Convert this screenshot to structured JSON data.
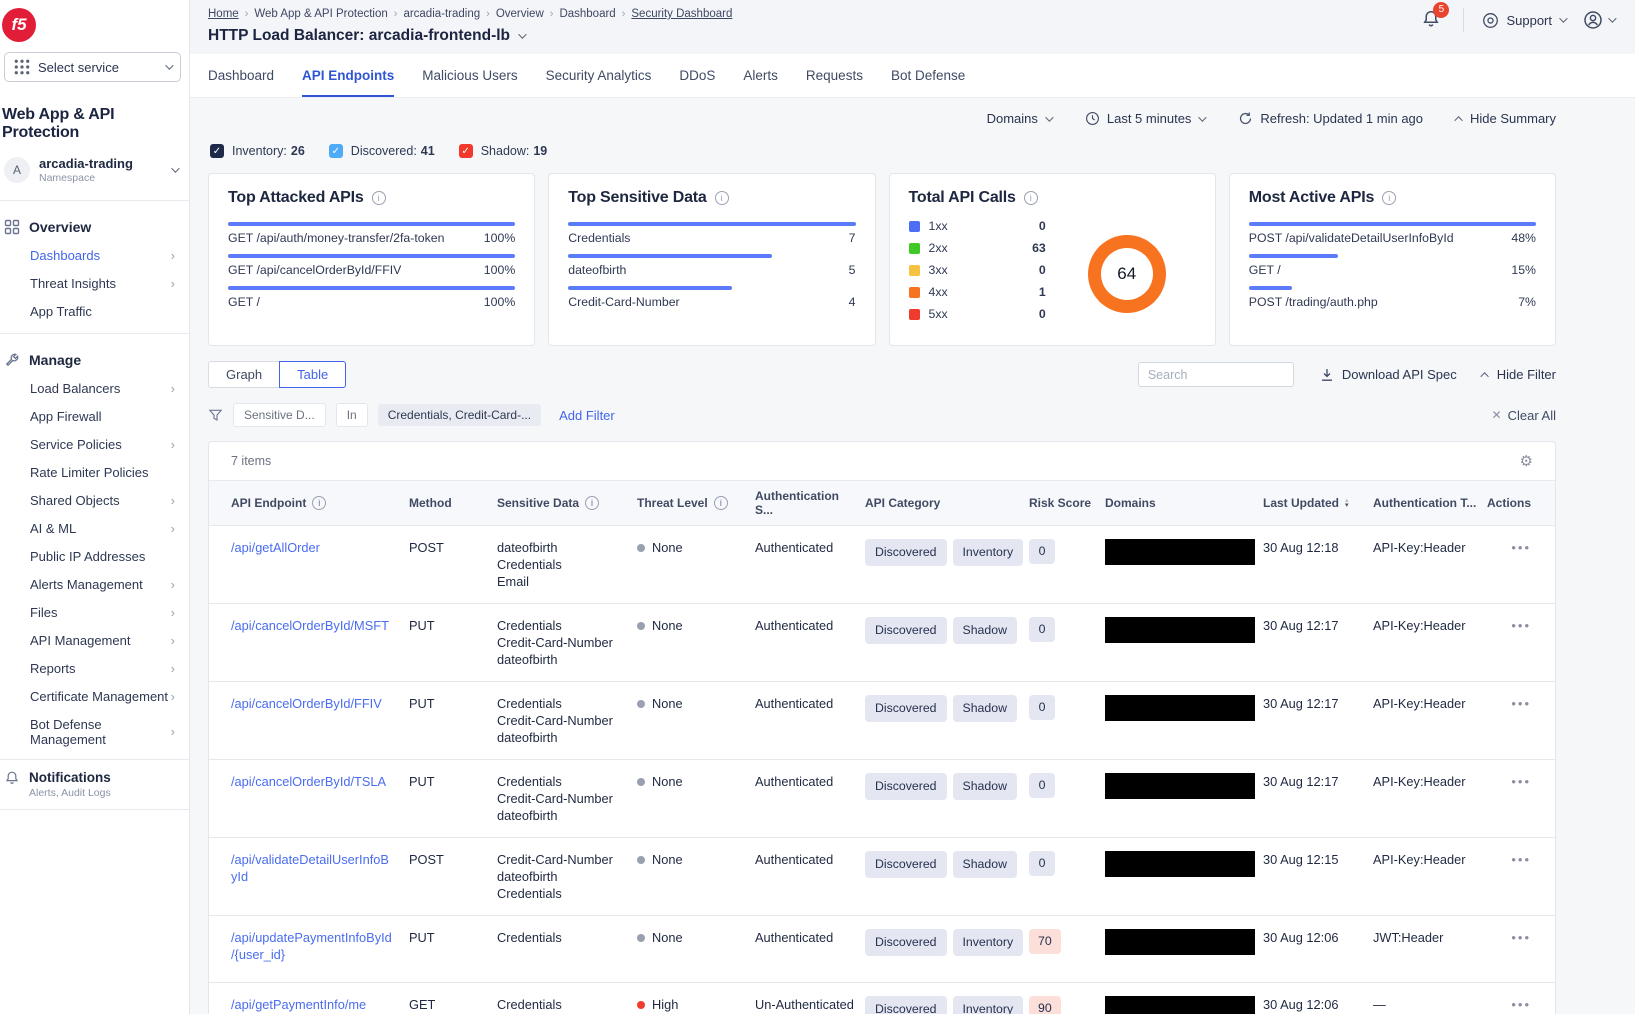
{
  "sidebar": {
    "logo_text": "f5",
    "select_service": {
      "label": "Select service"
    },
    "product_title": "Web App & API Protection",
    "namespace": {
      "avatar": "A",
      "name": "arcadia-trading",
      "sublabel": "Namespace"
    },
    "groups": [
      {
        "title": "Overview",
        "items": [
          {
            "label": "Dashboards",
            "chevron": "›"
          },
          {
            "label": "Threat Insights",
            "chevron": "›"
          },
          {
            "label": "App Traffic",
            "chevron": ""
          }
        ]
      },
      {
        "title": "Manage",
        "items": [
          {
            "label": "Load Balancers",
            "chevron": "›"
          },
          {
            "label": "App Firewall",
            "chevron": ""
          },
          {
            "label": "Service Policies",
            "chevron": "›"
          },
          {
            "label": "Rate Limiter Policies",
            "chevron": ""
          },
          {
            "label": "Shared Objects",
            "chevron": "›"
          },
          {
            "label": "AI & ML",
            "chevron": "›"
          },
          {
            "label": "Public IP Addresses",
            "chevron": ""
          },
          {
            "label": "Alerts Management",
            "chevron": "›"
          },
          {
            "label": "Files",
            "chevron": "›"
          },
          {
            "label": "API Management",
            "chevron": "›"
          },
          {
            "label": "Reports",
            "chevron": "›"
          },
          {
            "label": "Certificate Management",
            "chevron": "›"
          },
          {
            "label": "Bot Defense Management",
            "chevron": "›"
          }
        ]
      }
    ],
    "notifications": {
      "title": "Notifications",
      "subtitle": "Alerts, Audit Logs"
    }
  },
  "header": {
    "breadcrumbs": [
      "Home",
      "Web App & API Protection",
      "arcadia-trading",
      "Overview",
      "Dashboard",
      "Security Dashboard"
    ],
    "title": "HTTP Load Balancer: arcadia-frontend-lb",
    "notification_badge": "5",
    "support_label": "Support"
  },
  "tabs": {
    "items": [
      "Dashboard",
      "API Endpoints",
      "Malicious Users",
      "Security Analytics",
      "DDoS",
      "Alerts",
      "Requests",
      "Bot Defense"
    ],
    "active": "API Endpoints"
  },
  "toolbar": {
    "domains_label": "Domains",
    "time_range": "Last 5 minutes",
    "refresh_label": "Refresh: Updated 1 min ago",
    "hide_summary_label": "Hide Summary"
  },
  "inventory_filters": [
    {
      "label": "Inventory:",
      "count": "26",
      "color": "#1f2a4a"
    },
    {
      "label": "Discovered:",
      "count": "41",
      "color": "#4dabf7"
    },
    {
      "label": "Shadow:",
      "count": "19",
      "color": "#f2392c"
    }
  ],
  "chart_data": [
    {
      "type": "bar",
      "title": "Top Attacked APIs",
      "bar_color": "#5b7bfa",
      "xlim": [
        0,
        100
      ],
      "items": [
        {
          "label": "GET /api/auth/money-transfer/2fa-token",
          "value": "100%",
          "pct": 100
        },
        {
          "label": "GET /api/cancelOrderById/FFIV",
          "value": "100%",
          "pct": 100
        },
        {
          "label": "GET /",
          "value": "100%",
          "pct": 100
        }
      ]
    },
    {
      "type": "bar",
      "title": "Top Sensitive Data",
      "bar_color": "#5b7bfa",
      "xlim": [
        0,
        7
      ],
      "items": [
        {
          "label": "Credentials",
          "value": "7",
          "pct": 100
        },
        {
          "label": "dateofbirth",
          "value": "5",
          "pct": 71
        },
        {
          "label": "Credit-Card-Number",
          "value": "4",
          "pct": 57
        }
      ]
    },
    {
      "type": "donut",
      "title": "Total API Calls",
      "total": "64",
      "legend": [
        {
          "label": "1xx",
          "value": "0",
          "color": "#4c6ef5"
        },
        {
          "label": "2xx",
          "value": "63",
          "color": "#3fc926"
        },
        {
          "label": "3xx",
          "value": "0",
          "color": "#f5c242"
        },
        {
          "label": "4xx",
          "value": "1",
          "color": "#f7731f"
        },
        {
          "label": "5xx",
          "value": "0",
          "color": "#ef3b2d"
        }
      ]
    },
    {
      "type": "bar",
      "title": "Most Active APIs",
      "bar_color": "#5b7bfa",
      "xlim": [
        0,
        48
      ],
      "items": [
        {
          "label": "POST /api/validateDetailUserInfoById",
          "value": "48%",
          "pct": 100
        },
        {
          "label": "GET /",
          "value": "15%",
          "pct": 31
        },
        {
          "label": "POST /trading/auth.php",
          "value": "7%",
          "pct": 15
        }
      ]
    }
  ],
  "controls": {
    "graph_label": "Graph",
    "table_label": "Table",
    "search_placeholder": "Search",
    "download_label": "Download API Spec",
    "hide_filter_label": "Hide Filter"
  },
  "filter_bar": {
    "field": "Sensitive D...",
    "operator": "In",
    "value": "Credentials, Credit-Card-...",
    "add_filter": "Add Filter",
    "clear_all": "Clear All"
  },
  "table": {
    "items_count": "7 items",
    "columns": [
      "API Endpoint",
      "Method",
      "Sensitive Data",
      "Threat Level",
      "Authentication S...",
      "API Category",
      "Risk Score",
      "Domains",
      "Last Updated",
      "Authentication T...",
      "Actions"
    ],
    "rows": [
      {
        "endpoint": "/api/getAllOrder",
        "method": "POST",
        "sensitive": "dateofbirth\nCredentials\nEmail",
        "threat": "None",
        "threat_color": "#99a0b2",
        "auth_status": "Authenticated",
        "categories": [
          "Discovered",
          "Inventory"
        ],
        "risk": "0",
        "risk_bg": "#e4e7f1",
        "last_updated": "30 Aug 12:18",
        "auth_type": "API-Key:Header"
      },
      {
        "endpoint": "/api/cancelOrderById/MSFT",
        "method": "PUT",
        "sensitive": "Credentials\nCredit-Card-Number\ndateofbirth",
        "threat": "None",
        "threat_color": "#99a0b2",
        "auth_status": "Authenticated",
        "categories": [
          "Discovered",
          "Shadow"
        ],
        "risk": "0",
        "risk_bg": "#e4e7f1",
        "last_updated": "30 Aug 12:17",
        "auth_type": "API-Key:Header"
      },
      {
        "endpoint": "/api/cancelOrderById/FFIV",
        "method": "PUT",
        "sensitive": "Credentials\nCredit-Card-Number\ndateofbirth",
        "threat": "None",
        "threat_color": "#99a0b2",
        "auth_status": "Authenticated",
        "categories": [
          "Discovered",
          "Shadow"
        ],
        "risk": "0",
        "risk_bg": "#e4e7f1",
        "last_updated": "30 Aug 12:17",
        "auth_type": "API-Key:Header"
      },
      {
        "endpoint": "/api/cancelOrderById/TSLA",
        "method": "PUT",
        "sensitive": "Credentials\nCredit-Card-Number\ndateofbirth",
        "threat": "None",
        "threat_color": "#99a0b2",
        "auth_status": "Authenticated",
        "categories": [
          "Discovered",
          "Shadow"
        ],
        "risk": "0",
        "risk_bg": "#e4e7f1",
        "last_updated": "30 Aug 12:17",
        "auth_type": "API-Key:Header"
      },
      {
        "endpoint": "/api/validateDetailUserInfoById",
        "method": "POST",
        "sensitive": "Credit-Card-Number\ndateofbirth\nCredentials",
        "threat": "None",
        "threat_color": "#99a0b2",
        "auth_status": "Authenticated",
        "categories": [
          "Discovered",
          "Shadow"
        ],
        "risk": "0",
        "risk_bg": "#e4e7f1",
        "last_updated": "30 Aug 12:15",
        "auth_type": "API-Key:Header"
      },
      {
        "endpoint": "/api/updatePaymentInfoById/{user_id}",
        "method": "PUT",
        "sensitive": "Credentials",
        "threat": "None",
        "threat_color": "#99a0b2",
        "auth_status": "Authenticated",
        "categories": [
          "Discovered",
          "Inventory"
        ],
        "risk": "70",
        "risk_bg": "#fbdfd8",
        "last_updated": "30 Aug 12:06",
        "auth_type": "JWT:Header"
      },
      {
        "endpoint": "/api/getPaymentInfo/me",
        "method": "GET",
        "sensitive": "Credentials",
        "threat": "High",
        "threat_color": "#f23d2e",
        "auth_status": "Un-Authenticated",
        "categories": [
          "Discovered",
          "Inventory"
        ],
        "risk": "90",
        "risk_bg": "#fbdfd8",
        "last_updated": "30 Aug 12:06",
        "auth_type": "—"
      }
    ]
  }
}
